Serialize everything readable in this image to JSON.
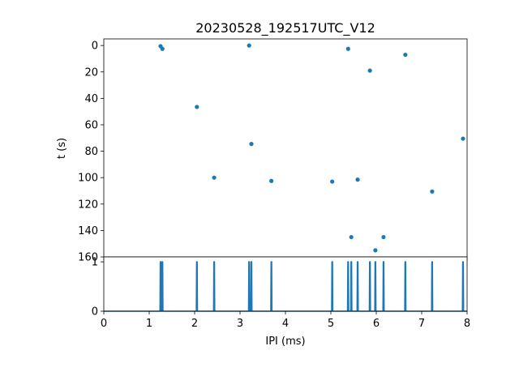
{
  "chart_data": [
    {
      "type": "scatter",
      "title": "20230528_192517UTC_V12",
      "xlabel": "",
      "ylabel": "t (s)",
      "xlim": [
        0,
        8
      ],
      "ylim": [
        160,
        -5
      ],
      "y_inverted": true,
      "xticks": [
        0,
        1,
        2,
        3,
        4,
        5,
        6,
        7,
        8
      ],
      "show_xtick_labels": false,
      "yticks": [
        0,
        20,
        40,
        60,
        80,
        100,
        120,
        140,
        160
      ],
      "color": "#1f77b4",
      "points": [
        {
          "x": 1.25,
          "y": 0.5
        },
        {
          "x": 1.29,
          "y": 2.5
        },
        {
          "x": 2.05,
          "y": 46.5
        },
        {
          "x": 2.43,
          "y": 100
        },
        {
          "x": 3.2,
          "y": 0
        },
        {
          "x": 3.25,
          "y": 74.5
        },
        {
          "x": 3.69,
          "y": 102.5
        },
        {
          "x": 5.03,
          "y": 103
        },
        {
          "x": 5.38,
          "y": 2.5
        },
        {
          "x": 5.45,
          "y": 145
        },
        {
          "x": 5.59,
          "y": 101.5
        },
        {
          "x": 5.86,
          "y": 19
        },
        {
          "x": 5.98,
          "y": 155
        },
        {
          "x": 6.16,
          "y": 145
        },
        {
          "x": 6.64,
          "y": 7
        },
        {
          "x": 7.23,
          "y": 110.5
        },
        {
          "x": 7.91,
          "y": 70.5
        }
      ]
    },
    {
      "type": "line",
      "xlabel": "IPI (ms)",
      "ylabel": "",
      "xlim": [
        0,
        8
      ],
      "ylim": [
        0,
        1.1
      ],
      "xticks": [
        0,
        1,
        2,
        3,
        4,
        5,
        6,
        7,
        8
      ],
      "yticks": [
        0,
        1
      ],
      "color": "#1f77b4",
      "spikes": [
        1.25,
        1.29,
        2.05,
        2.43,
        3.2,
        3.25,
        3.69,
        5.03,
        5.38,
        5.45,
        5.59,
        5.86,
        5.98,
        6.16,
        6.64,
        7.23,
        7.91
      ]
    }
  ]
}
